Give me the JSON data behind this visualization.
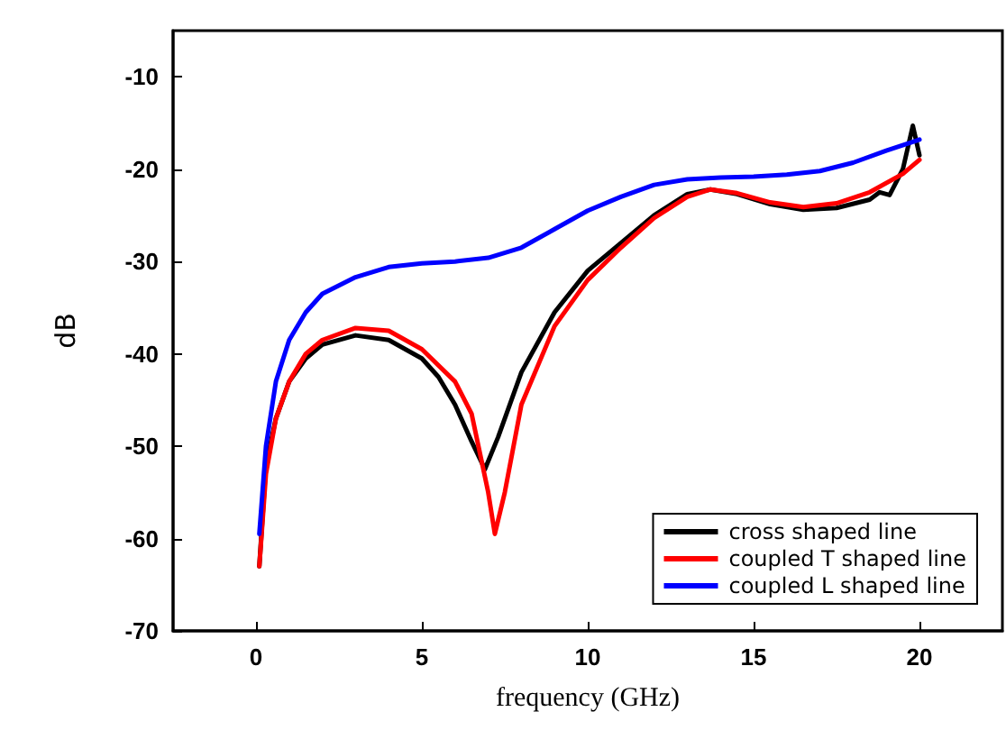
{
  "chart_data": {
    "type": "line",
    "xlabel": "frequency (GHz)",
    "ylabel": "dB",
    "xlim": [
      -2.5,
      22.5
    ],
    "xticks": [
      0,
      5,
      10,
      15,
      20
    ],
    "ylim": [
      -70,
      -5
    ],
    "yticks": [
      -70,
      -60,
      -50,
      -40,
      -30,
      -20,
      -10
    ],
    "grid": false,
    "legend": "bottom right",
    "marker": "none",
    "line_style": "solid",
    "series": [
      {
        "name": "cross shaped line",
        "color": "#000000",
        "x": [
          0.1,
          0.3,
          0.6,
          1,
          1.5,
          2,
          3,
          4,
          5,
          5.5,
          6,
          6.5,
          6.9,
          7.3,
          8,
          9,
          10,
          11,
          12,
          13,
          13.7,
          14.5,
          15.5,
          16.5,
          17.5,
          18.5,
          18.8,
          19.1,
          19.5,
          19.8,
          20
        ],
        "values": [
          -63,
          -52,
          -47,
          -43,
          -40.5,
          -39,
          -38,
          -38.5,
          -40.5,
          -42.5,
          -45.5,
          -49.5,
          -52.5,
          -49,
          -42,
          -35.5,
          -31,
          -28,
          -25,
          -22.7,
          -22.2,
          -22.7,
          -23.8,
          -24.4,
          -24.2,
          -23.3,
          -22.5,
          -22.8,
          -20,
          -15.3,
          -18.5
        ]
      },
      {
        "name": "coupled T shaped line",
        "color": "#ff0000",
        "x": [
          0.1,
          0.3,
          0.6,
          1,
          1.5,
          2,
          3,
          4,
          5,
          6,
          6.5,
          7,
          7.2,
          7.5,
          8,
          9,
          10,
          11,
          12,
          13,
          13.7,
          14.5,
          15.5,
          16.5,
          17.5,
          18.5,
          19.5,
          20
        ],
        "values": [
          -63,
          -53,
          -47,
          -43,
          -40,
          -38.5,
          -37.2,
          -37.5,
          -39.5,
          -43,
          -46.5,
          -55,
          -59.5,
          -55,
          -45.5,
          -37,
          -32,
          -28.5,
          -25.3,
          -23,
          -22.2,
          -22.6,
          -23.6,
          -24.1,
          -23.7,
          -22.5,
          -20.5,
          -19
        ]
      },
      {
        "name": "coupled L shaped line",
        "color": "#0000ff",
        "x": [
          0.1,
          0.3,
          0.6,
          1,
          1.5,
          2,
          3,
          4,
          5,
          6,
          7,
          8,
          9,
          10,
          11,
          12,
          13,
          14,
          15,
          16,
          17,
          18,
          19,
          20
        ],
        "values": [
          -59.5,
          -50,
          -43,
          -38.5,
          -35.5,
          -33.5,
          -31.7,
          -30.6,
          -30.2,
          -30,
          -29.6,
          -28.5,
          -26.5,
          -24.5,
          -23,
          -21.7,
          -21.1,
          -20.9,
          -20.8,
          -20.6,
          -20.2,
          -19.3,
          -18,
          -16.8
        ]
      }
    ]
  }
}
